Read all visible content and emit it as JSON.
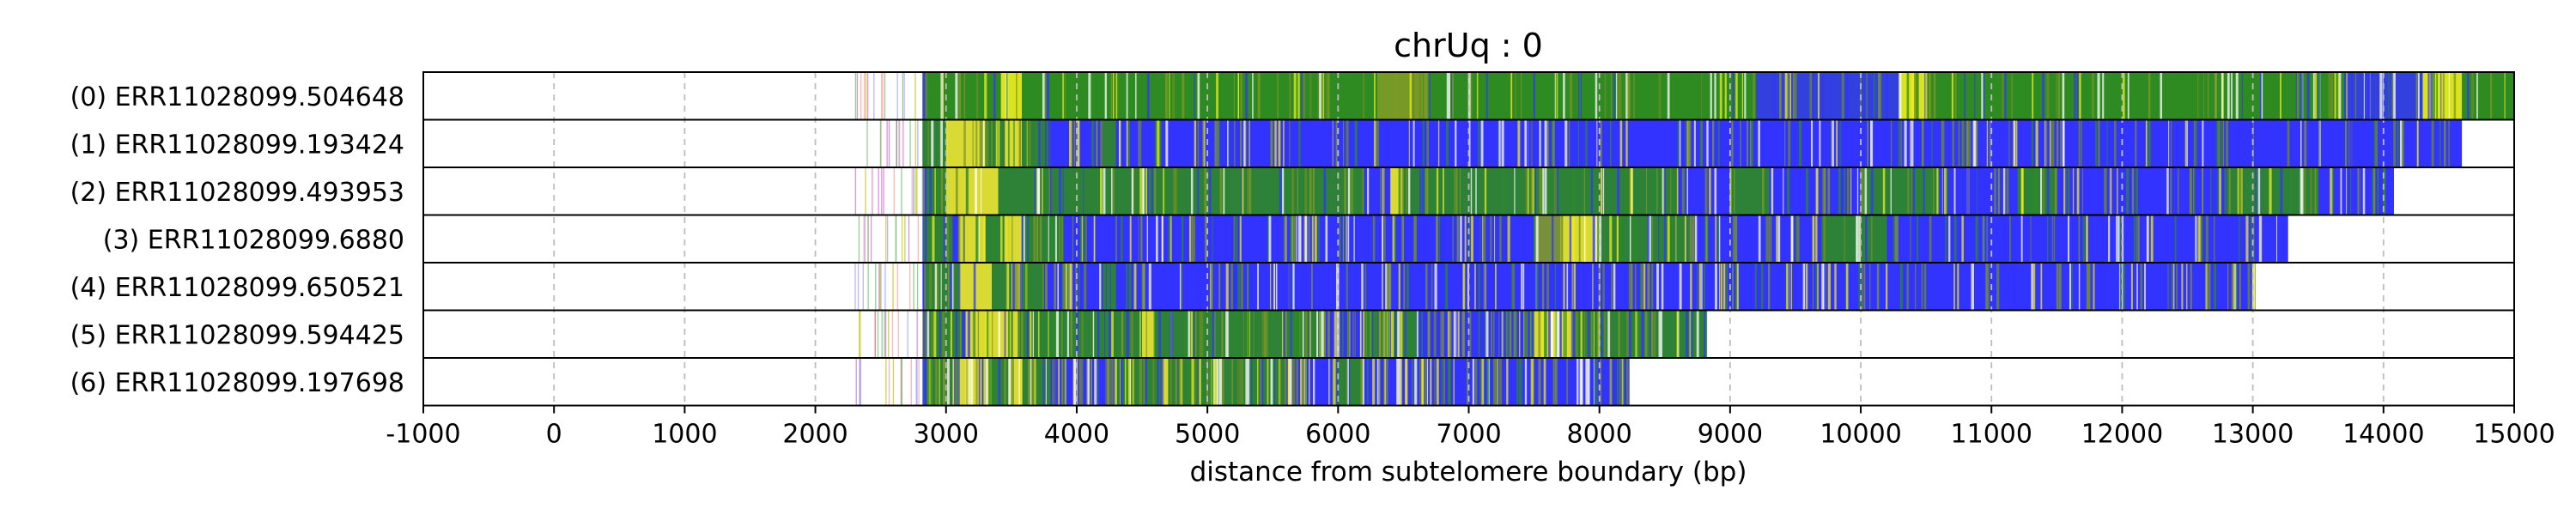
{
  "chart_data": {
    "type": "heatmap",
    "title": "chrUq : 0",
    "xlabel": "distance from subtelomere boundary (bp)",
    "ylabel": "",
    "xlim": [
      -1000,
      15000
    ],
    "x_ticks": [
      "-1000",
      "0",
      "1000",
      "2000",
      "3000",
      "4000",
      "5000",
      "6000",
      "7000",
      "8000",
      "9000",
      "10000",
      "11000",
      "12000",
      "13000",
      "14000",
      "15000"
    ],
    "grid": "vertical dashed at each x tick",
    "colors": {
      "blue": "#3333ff",
      "green": "#2e8b22",
      "yellow": "#ecec1e",
      "olive": "#7f9a26",
      "frame": "#000000",
      "grid": "#bdbdbd"
    },
    "reads": [
      {
        "label": "(0) ERR11028099.504648",
        "end": 15000,
        "bg": "green",
        "segments": [
          [
            2820,
            3420,
            "green"
          ],
          [
            3420,
            3580,
            "yellow"
          ],
          [
            3580,
            6300,
            "green"
          ],
          [
            6300,
            6700,
            "olive"
          ],
          [
            6700,
            9200,
            "green"
          ],
          [
            9200,
            10300,
            "blue"
          ],
          [
            10300,
            10500,
            "yellow"
          ],
          [
            10500,
            13700,
            "green"
          ],
          [
            13700,
            14300,
            "blue"
          ],
          [
            14300,
            14600,
            "yellow"
          ],
          [
            14600,
            15000,
            "green"
          ]
        ]
      },
      {
        "label": "(1) ERR11028099.193424",
        "end": 14600,
        "bg": "blue",
        "segments": [
          [
            2820,
            3000,
            "green"
          ],
          [
            3000,
            3300,
            "yellow"
          ],
          [
            3300,
            3450,
            "green"
          ],
          [
            3450,
            3580,
            "yellow"
          ],
          [
            3580,
            3800,
            "green"
          ],
          [
            4200,
            4300,
            "green"
          ],
          [
            4600,
            4650,
            "green"
          ]
        ]
      },
      {
        "label": "(2) ERR11028099.493953",
        "end": 14080,
        "bg": "blue",
        "segments": [
          [
            2850,
            3000,
            "green"
          ],
          [
            3000,
            3400,
            "yellow"
          ],
          [
            3400,
            3580,
            "green"
          ],
          [
            3580,
            6200,
            "green"
          ],
          [
            6400,
            6500,
            "yellow"
          ],
          [
            6500,
            7300,
            "green"
          ],
          [
            7300,
            8000,
            "green"
          ],
          [
            8000,
            8600,
            "green"
          ],
          [
            9000,
            9300,
            "green"
          ],
          [
            10000,
            10600,
            "green"
          ],
          [
            11200,
            11500,
            "green"
          ],
          [
            12800,
            13500,
            "green"
          ]
        ]
      },
      {
        "label": "(3) ERR11028099.6880",
        "end": 13270,
        "bg": "blue",
        "segments": [
          [
            2850,
            3050,
            "green"
          ],
          [
            3100,
            3300,
            "yellow"
          ],
          [
            3300,
            3450,
            "green"
          ],
          [
            3450,
            3580,
            "yellow"
          ],
          [
            3580,
            3900,
            "green"
          ],
          [
            7500,
            7700,
            "olive"
          ],
          [
            7700,
            8000,
            "yellow"
          ],
          [
            8000,
            8300,
            "green"
          ],
          [
            8300,
            8700,
            "green"
          ],
          [
            9700,
            10200,
            "green"
          ]
        ]
      },
      {
        "label": "(4) ERR11028099.650521",
        "end": 13010,
        "bg": "blue",
        "segments": [
          [
            2850,
            3100,
            "green"
          ],
          [
            3100,
            3350,
            "yellow"
          ],
          [
            3350,
            3500,
            "green"
          ],
          [
            3500,
            3580,
            "yellow"
          ],
          [
            3580,
            3750,
            "green"
          ],
          [
            4200,
            4300,
            "green"
          ]
        ]
      },
      {
        "label": "(5) ERR11028099.594425",
        "end": 8820,
        "bg": "blue",
        "segments": [
          [
            2850,
            3150,
            "green"
          ],
          [
            3150,
            3550,
            "yellow"
          ],
          [
            3550,
            4500,
            "green"
          ],
          [
            4500,
            4600,
            "yellow"
          ],
          [
            4600,
            5900,
            "green"
          ],
          [
            6200,
            6600,
            "green"
          ],
          [
            7500,
            7800,
            "yellow"
          ],
          [
            7800,
            8800,
            "green"
          ]
        ]
      },
      {
        "label": "(6) ERR11028099.197698",
        "end": 8230,
        "bg": "blue",
        "segments": [
          [
            2850,
            3050,
            "green"
          ],
          [
            3050,
            3350,
            "yellow"
          ],
          [
            3350,
            3500,
            "green"
          ],
          [
            3500,
            3580,
            "yellow"
          ],
          [
            3580,
            3800,
            "green"
          ],
          [
            4300,
            4650,
            "green"
          ],
          [
            4650,
            4700,
            "yellow"
          ],
          [
            4700,
            5600,
            "green"
          ],
          [
            6000,
            6200,
            "green"
          ]
        ]
      }
    ]
  }
}
